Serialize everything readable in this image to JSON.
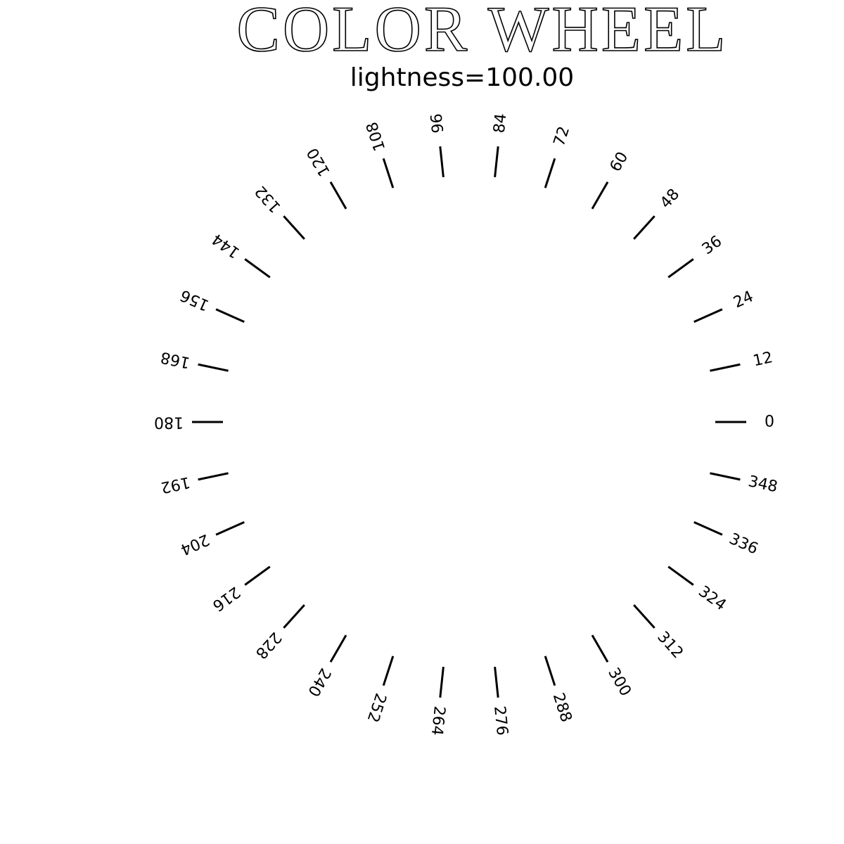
{
  "title": "COLOR WHEEL",
  "subtitle": "lightness=100.00",
  "hue_ticks": [
    "0",
    "12",
    "24",
    "36",
    "48",
    "60",
    "72",
    "84",
    "96",
    "108",
    "120",
    "132",
    "144",
    "156",
    "168",
    "180",
    "192",
    "204",
    "216",
    "228",
    "240",
    "252",
    "264",
    "276",
    "288",
    "300",
    "312",
    "324",
    "336",
    "348"
  ],
  "tick_color": "#000000",
  "background_color": "#ffffff"
}
